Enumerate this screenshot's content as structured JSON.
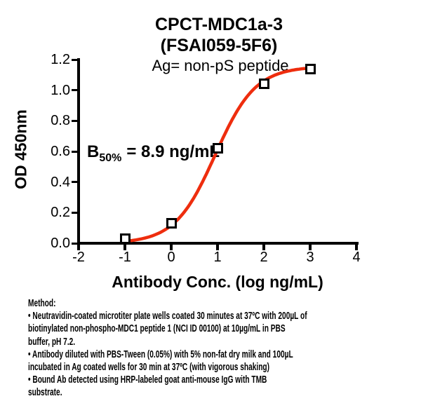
{
  "chart_data": {
    "type": "scatter",
    "title": "CPCT-MDC1a-3",
    "subtitle": "(FSAI059-5F6)",
    "antigen_label": "Ag= non-pS peptide",
    "b50_annotation": {
      "prefix": "B",
      "sub": "50%",
      "rest": "= 8.9 ng/mL"
    },
    "xlabel": "Antibody Conc. (log ng/mL)",
    "ylabel": "OD 450nm",
    "xlim": [
      -2,
      4
    ],
    "ylim": [
      0,
      1.2
    ],
    "xticks": [
      "-2",
      "-1",
      "0",
      "1",
      "2",
      "3",
      "4"
    ],
    "yticks": [
      "0.0",
      "0.2",
      "0.4",
      "0.6",
      "0.8",
      "1.0",
      "1.2"
    ],
    "grid": false,
    "marker": "open-square",
    "x": [
      -1,
      0,
      1,
      2,
      3
    ],
    "y": [
      0.03,
      0.13,
      0.62,
      1.04,
      1.14
    ],
    "curve_fit": {
      "model": "4PL-sigmoid",
      "bottom": 0.0,
      "top": 1.155,
      "logec50": 0.95,
      "hill": 1.0,
      "x_start": -1.0,
      "x_end": 3.02,
      "color": "#ee2d0e"
    }
  },
  "method": {
    "lines": [
      "Method:",
      "• Neutravidin-coated microtiter plate wells coated 30 minutes at 37ºC  with 200µL of",
      "biotinylated non-phospho-MDC1 peptide 1 (NCI ID 00100) at 10µg/mL in PBS",
      "buffer, pH 7.2.",
      "• Antibody diluted with PBS-Tween (0.05%) with 5% non-fat dry milk and 100µL",
      "incubated in Ag coated wells for 30 min at 37ºC (with vigorous shaking)",
      "• Bound Ab detected using HRP-labeled goat anti-mouse IgG with TMB",
      "substrate."
    ]
  },
  "colors": {
    "curve": "#ee2d0e",
    "axis": "#000000",
    "background": "#ffffff"
  }
}
